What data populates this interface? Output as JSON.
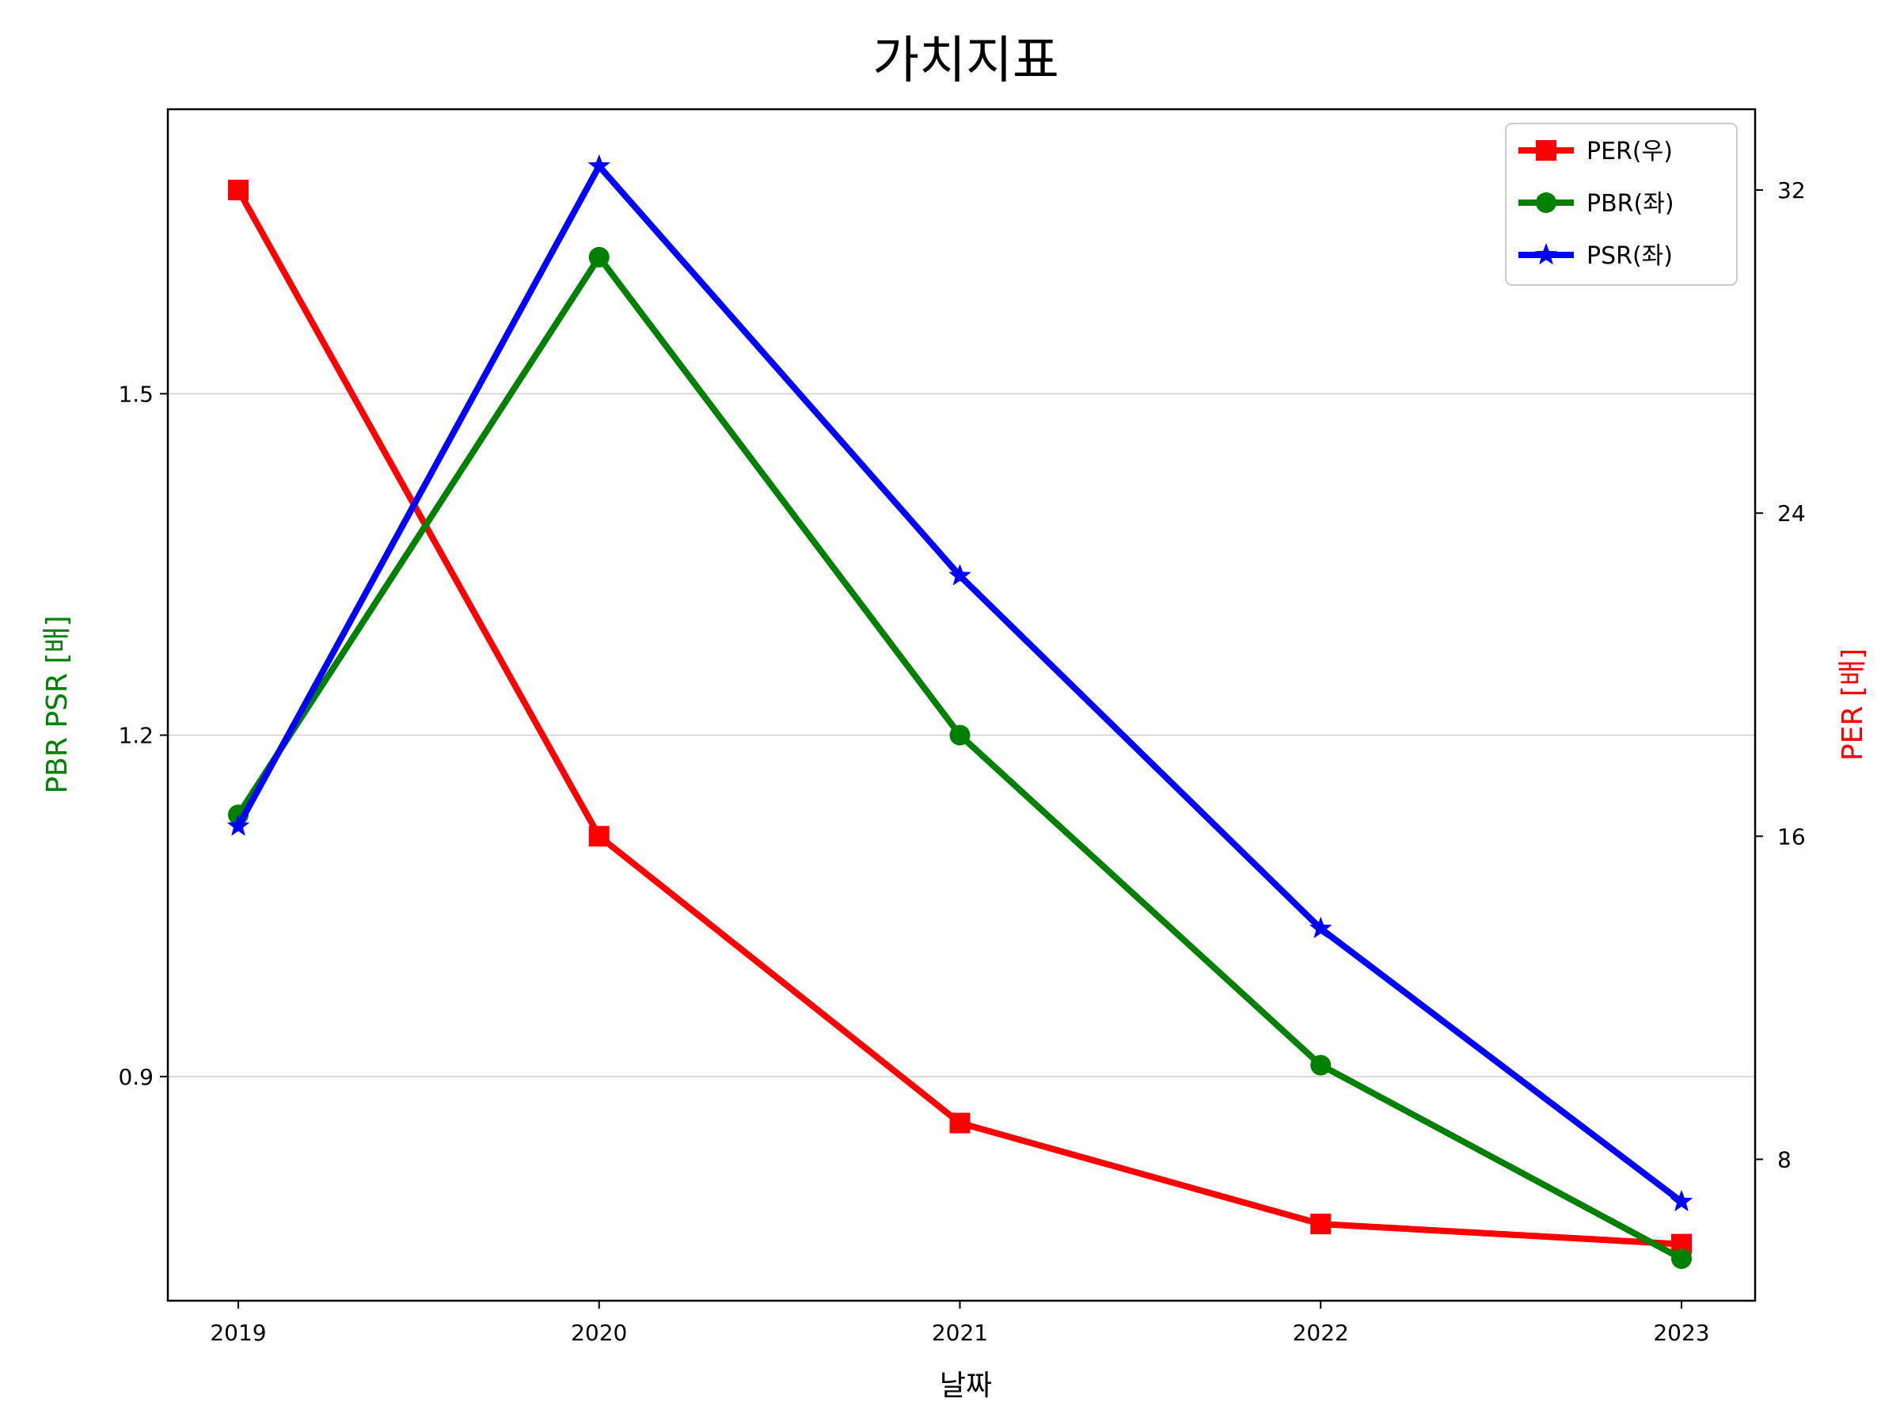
{
  "chart_data": {
    "type": "line",
    "title": "가치지표",
    "xlabel": "날짜",
    "ylabel_left": "PBR PSR [배]",
    "ylabel_right": "PER [배]",
    "categories": [
      "2019",
      "2020",
      "2021",
      "2022",
      "2023"
    ],
    "left_axis": {
      "ticks": [
        "0.9",
        "1.2",
        "1.5"
      ],
      "tick_values": [
        0.9,
        1.2,
        1.5
      ],
      "ylim": [
        0.703,
        1.75
      ]
    },
    "right_axis": {
      "ticks": [
        "8",
        "16",
        "24",
        "32"
      ],
      "tick_values": [
        8,
        16,
        24,
        32
      ],
      "ylim": [
        4.5,
        34.0
      ]
    },
    "grid": "horizontal (left axis ticks)",
    "legend_position": "top-right",
    "series": [
      {
        "name": "PER(우)",
        "axis": "right",
        "color": "#ff0000",
        "marker": "square",
        "values": [
          32.0,
          16.0,
          8.9,
          6.4,
          5.9
        ]
      },
      {
        "name": "PBR(좌)",
        "axis": "left",
        "color": "#008000",
        "marker": "circle",
        "values": [
          1.13,
          1.62,
          1.2,
          0.91,
          0.74
        ]
      },
      {
        "name": "PSR(좌)",
        "axis": "left",
        "color": "#0000ff",
        "marker": "star",
        "values": [
          1.12,
          1.7,
          1.34,
          1.03,
          0.79
        ]
      }
    ],
    "colors": {
      "left_label": "#008000",
      "right_label": "#ff0000"
    }
  }
}
